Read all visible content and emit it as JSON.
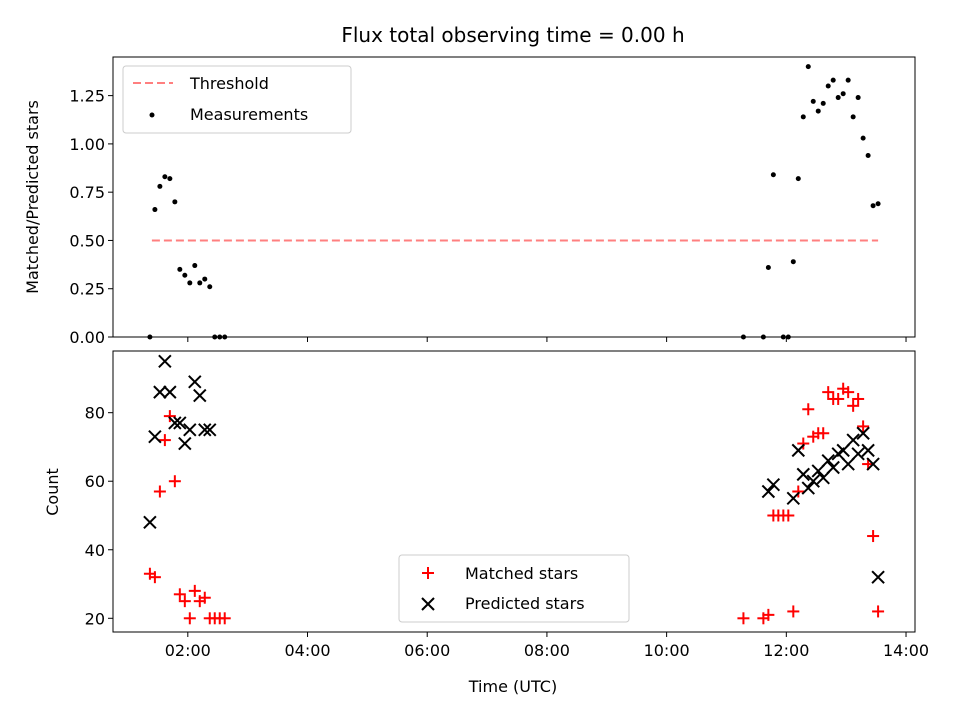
{
  "chart_data": [
    {
      "type": "scatter",
      "title": "Flux total observing time = 0.00 h",
      "xlabel": "",
      "ylabel": "Matched/Predicted stars",
      "xlim_hours": [
        0.75,
        14.15
      ],
      "ylim": [
        0.0,
        1.45
      ],
      "yticks": [
        0.0,
        0.25,
        0.5,
        0.75,
        1.0,
        1.25
      ],
      "ytick_labels": [
        "0.00",
        "0.25",
        "0.50",
        "0.75",
        "1.00",
        "1.25"
      ],
      "legend": {
        "position": "upper left",
        "entries": [
          "Threshold",
          "Measurements"
        ]
      },
      "threshold": {
        "name": "Threshold",
        "y": 0.5,
        "x_range": [
          "01:24",
          "13:32"
        ],
        "color": "#ff7f7f",
        "style": "dashed"
      },
      "series": [
        {
          "name": "Measurements",
          "color": "#000000",
          "marker": "dot",
          "x": [
            "01:22",
            "01:27",
            "01:32",
            "01:37",
            "01:42",
            "01:47",
            "01:52",
            "01:57",
            "02:02",
            "02:07",
            "02:12",
            "02:17",
            "02:22",
            "02:27",
            "02:32",
            "02:37",
            "11:17",
            "11:37",
            "11:42",
            "11:47",
            "11:57",
            "12:02",
            "12:07",
            "12:12",
            "12:17",
            "12:22",
            "12:27",
            "12:32",
            "12:37",
            "12:42",
            "12:47",
            "12:52",
            "12:57",
            "13:02",
            "13:07",
            "13:12",
            "13:17",
            "13:22",
            "13:27",
            "13:32"
          ],
          "y": [
            0.0,
            0.66,
            0.78,
            0.83,
            0.82,
            0.7,
            0.35,
            0.32,
            0.28,
            0.37,
            0.28,
            0.3,
            0.26,
            0.0,
            0.0,
            0.0,
            0.0,
            0.0,
            0.36,
            0.84,
            0.0,
            0.0,
            0.39,
            0.82,
            1.14,
            1.4,
            1.22,
            1.17,
            1.21,
            1.3,
            1.33,
            1.24,
            1.26,
            1.33,
            1.14,
            1.24,
            1.03,
            0.94,
            0.68,
            0.69
          ]
        }
      ]
    },
    {
      "type": "scatter",
      "title": "",
      "xlabel": "Time (UTC)",
      "ylabel": "Count",
      "xlim_hours": [
        0.75,
        14.15
      ],
      "ylim": [
        16,
        98
      ],
      "yticks": [
        20,
        40,
        60,
        80
      ],
      "ytick_labels": [
        "20",
        "40",
        "60",
        "80"
      ],
      "xticks": [
        "02:00",
        "04:00",
        "06:00",
        "08:00",
        "10:00",
        "12:00",
        "14:00"
      ],
      "legend": {
        "position": "lower center",
        "entries": [
          "Matched stars",
          "Predicted stars"
        ]
      },
      "series": [
        {
          "name": "Matched stars",
          "color": "#ff0000",
          "marker": "plus",
          "x": [
            "01:22",
            "01:27",
            "01:32",
            "01:37",
            "01:42",
            "01:47",
            "01:52",
            "01:57",
            "02:02",
            "02:07",
            "02:12",
            "02:17",
            "02:22",
            "02:27",
            "02:32",
            "02:37",
            "11:17",
            "11:37",
            "11:42",
            "11:47",
            "11:52",
            "11:57",
            "12:02",
            "12:07",
            "12:12",
            "12:17",
            "12:22",
            "12:27",
            "12:32",
            "12:37",
            "12:42",
            "12:47",
            "12:52",
            "12:57",
            "13:02",
            "13:07",
            "13:12",
            "13:17",
            "13:22",
            "13:27",
            "13:32"
          ],
          "y": [
            33,
            32,
            57,
            72,
            79,
            60,
            27,
            25,
            20,
            28,
            25,
            26,
            20,
            20,
            20,
            20,
            20,
            20,
            21,
            50,
            50,
            50,
            50,
            22,
            57,
            71,
            81,
            73,
            74,
            74,
            86,
            84,
            84,
            87,
            86,
            82,
            84,
            76,
            65,
            44,
            22
          ]
        },
        {
          "name": "Predicted stars",
          "color": "#000000",
          "marker": "x",
          "x": [
            "01:22",
            "01:27",
            "01:32",
            "01:37",
            "01:42",
            "01:47",
            "01:52",
            "01:57",
            "02:02",
            "02:07",
            "02:12",
            "02:17",
            "02:22",
            "11:42",
            "11:47",
            "12:07",
            "12:12",
            "12:17",
            "12:22",
            "12:27",
            "12:32",
            "12:37",
            "12:42",
            "12:47",
            "12:52",
            "12:57",
            "13:02",
            "13:07",
            "13:12",
            "13:17",
            "13:22",
            "13:27",
            "13:32"
          ],
          "y": [
            48,
            73,
            86,
            95,
            86,
            77,
            77,
            71,
            75,
            89,
            85,
            75,
            75,
            57,
            59,
            55,
            69,
            62,
            58,
            60,
            63,
            61,
            66,
            64,
            68,
            69,
            65,
            72,
            68,
            74,
            69,
            65,
            32
          ]
        }
      ]
    }
  ]
}
